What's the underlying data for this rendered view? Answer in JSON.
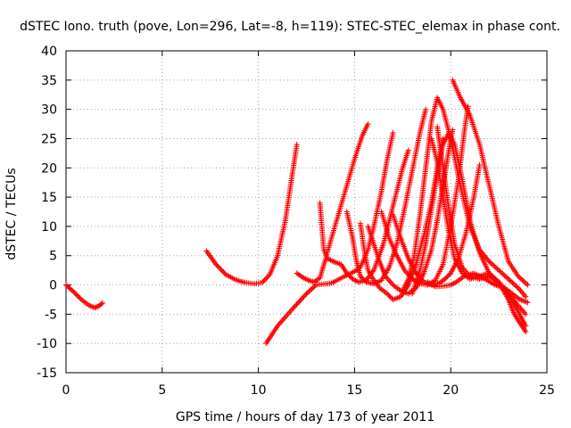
{
  "chart_data": {
    "type": "scatter",
    "title": "dSTEC Iono. truth (pove, Lon=296, Lat=-8, h=119): STEC-STEC_elemax in phase cont.",
    "xlabel": "GPS time / hours of day 173 of year 2011",
    "ylabel": "dSTEC  / TECUs",
    "xlim": [
      0,
      25
    ],
    "ylim": [
      -15,
      40
    ],
    "xticks": [
      0,
      5,
      10,
      15,
      20,
      25
    ],
    "yticks": [
      -15,
      -10,
      -5,
      0,
      5,
      10,
      15,
      20,
      25,
      30,
      35,
      40
    ],
    "grid": true,
    "marker": "+",
    "color": "#ff0000",
    "series": [
      {
        "x": [
          0.0,
          0.4,
          0.8,
          1.2,
          1.5,
          1.7,
          1.9
        ],
        "y": [
          0.0,
          -1.2,
          -2.5,
          -3.5,
          -3.9,
          -3.6,
          -3.1
        ]
      },
      {
        "x": [
          7.3,
          7.8,
          8.3,
          8.8,
          9.3,
          9.8,
          10.2,
          10.6,
          11.0,
          11.4,
          11.7,
          12.0
        ],
        "y": [
          5.8,
          3.5,
          1.8,
          0.9,
          0.4,
          0.2,
          0.4,
          1.8,
          5.0,
          11.0,
          17.5,
          24.0
        ]
      },
      {
        "x": [
          10.4,
          11.0,
          11.8,
          12.5,
          13.0,
          13.8,
          14.5,
          15.0,
          15.3,
          15.7,
          16.0,
          16.4,
          16.7,
          17.0
        ],
        "y": [
          -10.0,
          -7.0,
          -4.0,
          -1.5,
          0.0,
          0.3,
          1.5,
          2.3,
          3.0,
          6.0,
          10.0,
          16.0,
          21.5,
          26.0
        ]
      },
      {
        "x": [
          12.0,
          12.3,
          12.6,
          12.9,
          13.2,
          13.5,
          13.8,
          14.2,
          14.6,
          15.0,
          15.4,
          15.7
        ],
        "y": [
          2.0,
          1.3,
          0.8,
          0.5,
          1.2,
          4.5,
          8.0,
          12.5,
          17.0,
          21.5,
          25.5,
          27.5
        ]
      },
      {
        "x": [
          13.2,
          13.4,
          13.6,
          13.9,
          14.3,
          14.6,
          14.9,
          15.2,
          15.6,
          16.0,
          16.5,
          17.0,
          17.5,
          17.8
        ],
        "y": [
          14.0,
          6.0,
          4.5,
          4.0,
          3.5,
          2.0,
          1.0,
          0.5,
          0.8,
          2.5,
          7.0,
          13.5,
          20.0,
          23.0
        ]
      },
      {
        "x": [
          14.6,
          14.9,
          15.1,
          15.3,
          15.6,
          16.0,
          16.4,
          16.8,
          17.2,
          17.6,
          18.0,
          18.4,
          18.7
        ],
        "y": [
          12.5,
          8.0,
          4.0,
          1.5,
          0.5,
          0.2,
          0.8,
          3.0,
          7.0,
          13.0,
          19.5,
          26.0,
          30.0
        ]
      },
      {
        "x": [
          15.3,
          15.5,
          15.7,
          16.0,
          16.3,
          16.7,
          17.0,
          17.4,
          17.8,
          18.2,
          18.6,
          19.0,
          19.3,
          19.6
        ],
        "y": [
          10.5,
          6.0,
          2.5,
          0.8,
          -0.5,
          -1.5,
          -2.5,
          -2.0,
          0.0,
          3.5,
          8.5,
          14.0,
          20.0,
          25.0
        ]
      },
      {
        "x": [
          15.7,
          16.0,
          16.3,
          16.6,
          17.0,
          17.4,
          17.8,
          18.2,
          18.6,
          19.0,
          19.3,
          19.6,
          19.9,
          20.1
        ],
        "y": [
          10.0,
          7.0,
          4.0,
          1.5,
          0.0,
          -1.0,
          -1.5,
          -0.5,
          2.0,
          6.0,
          11.0,
          17.0,
          23.0,
          26.5
        ]
      },
      {
        "x": [
          16.4,
          16.8,
          17.2,
          17.6,
          18.0,
          18.4,
          18.8,
          19.2,
          19.6,
          20.0,
          20.4,
          20.7,
          20.9
        ],
        "y": [
          12.5,
          8.0,
          5.0,
          2.5,
          1.0,
          0.2,
          0.0,
          0.8,
          3.5,
          10.0,
          18.0,
          26.0,
          30.5
        ]
      },
      {
        "x": [
          17.0,
          17.4,
          17.8,
          18.2,
          18.6,
          19.0,
          19.4,
          19.7,
          20.0,
          20.4,
          20.8,
          21.2,
          21.5
        ],
        "y": [
          12.0,
          8.0,
          4.5,
          2.0,
          0.5,
          0.0,
          0.3,
          1.0,
          2.0,
          4.5,
          9.0,
          15.0,
          20.5
        ]
      },
      {
        "x": [
          17.5,
          17.8,
          18.1,
          18.4,
          18.7,
          19.0,
          19.3,
          19.6,
          20.0,
          20.5,
          21.0,
          21.5,
          22.0,
          22.5,
          23.0,
          23.5,
          23.9
        ],
        "y": [
          -1.0,
          1.0,
          5.0,
          12.0,
          20.0,
          28.0,
          32.0,
          30.0,
          25.0,
          17.0,
          10.0,
          6.0,
          4.0,
          2.5,
          1.0,
          -0.5,
          -2.0
        ]
      },
      {
        "x": [
          18.0,
          18.4,
          18.7,
          19.0,
          19.3,
          19.6,
          19.9,
          20.2,
          20.6,
          21.0,
          21.5,
          22.0,
          22.5,
          23.0,
          23.5,
          23.9
        ],
        "y": [
          -1.5,
          2.5,
          7.0,
          13.0,
          19.0,
          24.0,
          26.0,
          24.0,
          18.0,
          11.0,
          5.5,
          2.0,
          0.0,
          -1.5,
          -3.5,
          -5.0
        ]
      },
      {
        "x": [
          19.0,
          19.3,
          19.6,
          19.9,
          20.2,
          20.6,
          21.0,
          21.5,
          22.0,
          22.5,
          23.0,
          23.3,
          23.6,
          23.9
        ],
        "y": [
          25.0,
          21.0,
          15.0,
          9.0,
          4.5,
          2.0,
          1.0,
          1.5,
          2.0,
          0.5,
          -2.5,
          -5.0,
          -6.5,
          -8.0
        ]
      },
      {
        "x": [
          19.3,
          19.6,
          19.9,
          20.2,
          20.6,
          21.0,
          21.5,
          22.0,
          22.5,
          23.0,
          23.5,
          23.9
        ],
        "y": [
          27.0,
          20.0,
          13.0,
          7.0,
          3.0,
          1.5,
          1.0,
          1.5,
          0.5,
          -1.5,
          -4.5,
          -7.0
        ]
      },
      {
        "x": [
          18.8,
          19.2,
          19.6,
          20.0,
          20.3,
          20.7,
          21.2,
          21.8,
          22.3,
          22.8,
          23.2,
          23.6,
          24.0
        ],
        "y": [
          0.5,
          -0.3,
          -0.2,
          0.0,
          0.5,
          1.5,
          2.0,
          1.0,
          0.0,
          -0.5,
          -1.5,
          -2.5,
          -3.0
        ]
      },
      {
        "x": [
          20.1,
          20.5,
          21.0,
          21.5,
          22.0,
          22.5,
          23.0,
          23.5,
          24.0
        ],
        "y": [
          35.0,
          32.0,
          29.0,
          24.0,
          17.0,
          10.0,
          4.0,
          1.5,
          0.0
        ]
      }
    ]
  }
}
